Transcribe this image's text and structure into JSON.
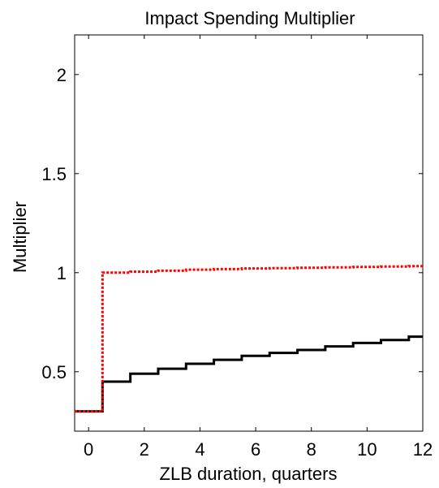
{
  "chart_data": {
    "type": "line",
    "title": "Impact Spending Multiplier",
    "xlabel": "ZLB duration, quarters",
    "ylabel": "Multiplier",
    "xlim": [
      -0.5,
      12
    ],
    "ylim": [
      0.2,
      2.2
    ],
    "xticks": [
      0,
      2,
      4,
      6,
      8,
      10,
      12
    ],
    "xtick_labels": [
      "0",
      "2",
      "4",
      "6",
      "8",
      "10",
      "12"
    ],
    "yticks": [
      0.5,
      1,
      1.5,
      2
    ],
    "ytick_labels": [
      "0.5",
      "1",
      "1.5",
      "2"
    ],
    "grid": false,
    "step": true,
    "x": [
      0,
      1,
      2,
      3,
      4,
      5,
      6,
      7,
      8,
      9,
      10,
      11,
      12
    ],
    "series": [
      {
        "style": "solid",
        "color": "#000000",
        "values": [
          0.3,
          0.45,
          0.49,
          0.515,
          0.54,
          0.56,
          0.58,
          0.595,
          0.61,
          0.628,
          0.645,
          0.66,
          0.677
        ]
      },
      {
        "style": "dotted",
        "color": "#ff0000",
        "values": [
          0.3,
          1.0,
          1.005,
          1.01,
          1.015,
          1.018,
          1.021,
          1.023,
          1.025,
          1.027,
          1.029,
          1.031,
          1.033
        ]
      }
    ]
  }
}
